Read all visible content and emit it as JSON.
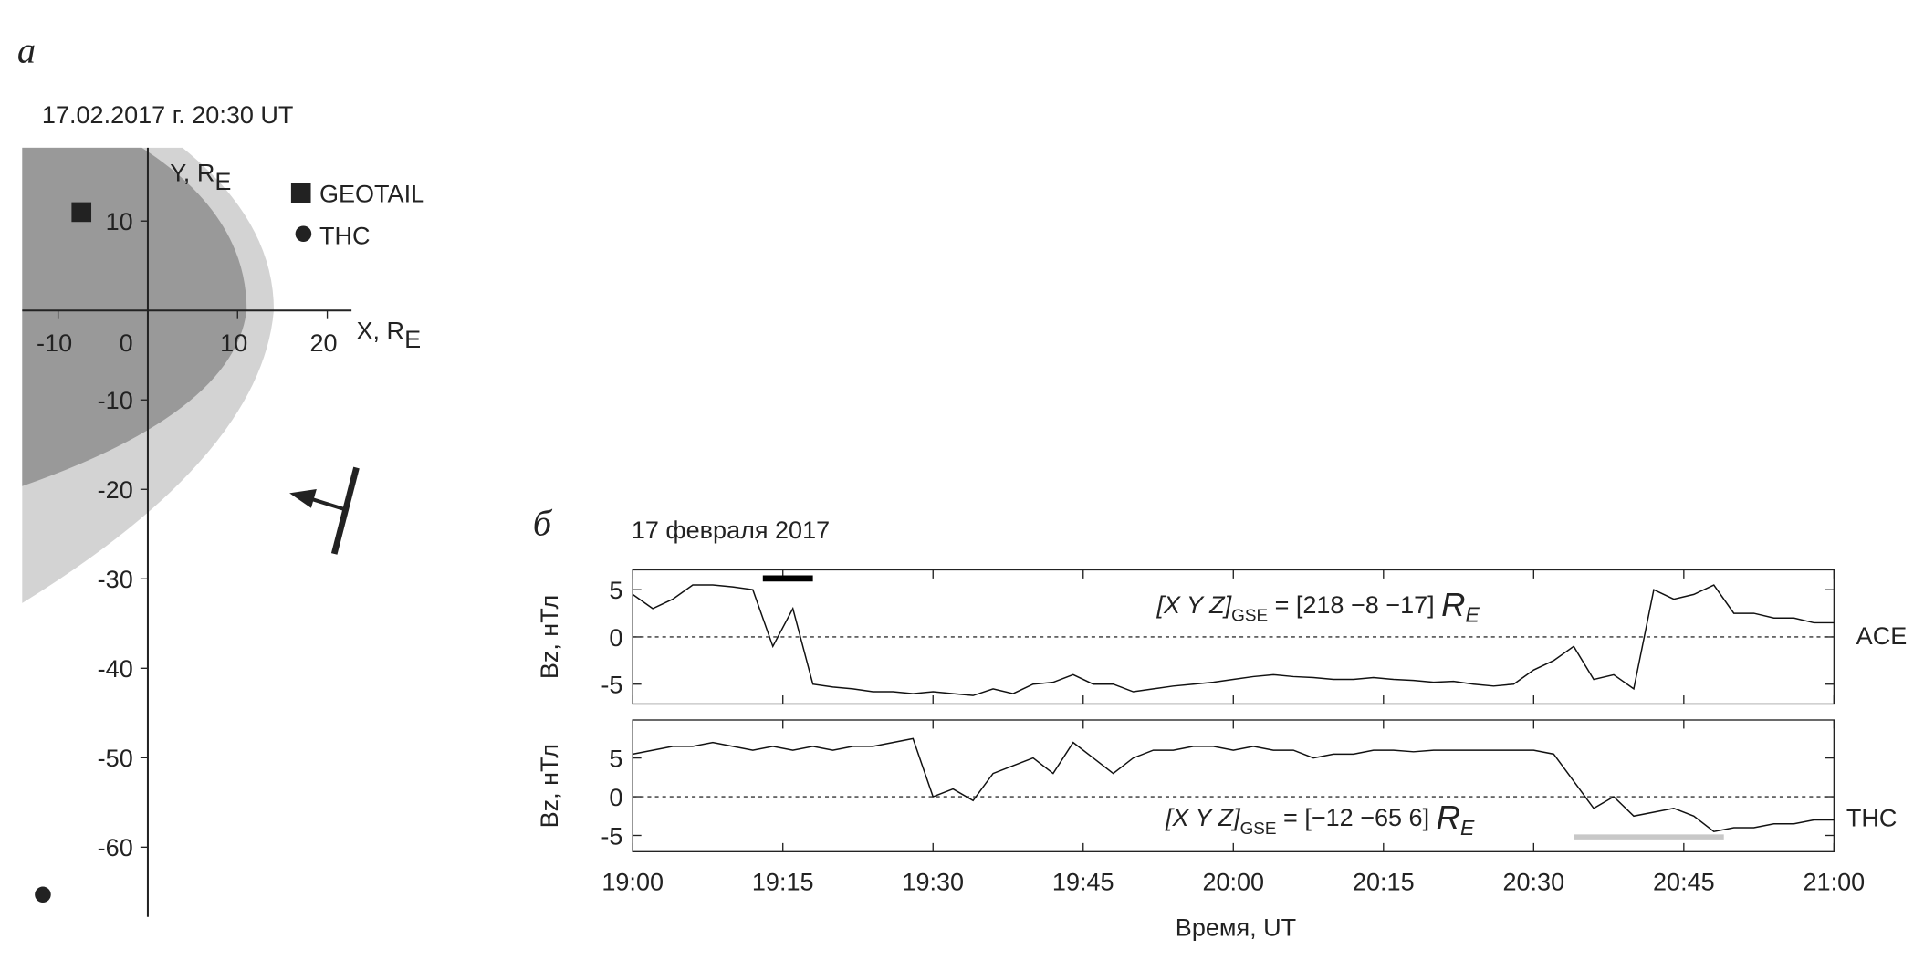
{
  "panel_labels": [
    "а",
    "б"
  ],
  "chart_data": [
    {
      "type": "scatter",
      "title": "17.02.2017 г.  20:30 UT",
      "xlabel": "X, R",
      "xlabel_sub": "E",
      "ylabel": "Y, R",
      "ylabel_sub": "E",
      "xlim": [
        -14,
        22.7
      ],
      "ylim": [
        -67.8,
        18.2
      ],
      "xticks": [
        -10,
        0,
        10,
        20
      ],
      "yticks": [
        10,
        -10,
        -20,
        -30,
        -40,
        -50,
        -60
      ],
      "series": [
        {
          "name": "GEOTAIL",
          "marker": "square",
          "color": "#222222",
          "x": [
            -7.4
          ],
          "values": [
            11
          ]
        },
        {
          "name": "THC",
          "marker": "circle",
          "color": "#222222",
          "x": [
            -11.7
          ],
          "values": [
            -65.3
          ]
        }
      ]
    },
    {
      "type": "line",
      "title": "17 февраля 2017",
      "ylabel": "Bz, нТл",
      "ylim": [
        -7.1,
        7.1
      ],
      "yticks": [
        -5,
        0,
        5
      ],
      "hline": 0,
      "annotation": [
        "[X Y Z]",
        "GSE",
        " = [218 −8 −17] ",
        "R",
        "E"
      ],
      "intervals": [
        {
          "start": "19:13",
          "end": "19:18",
          "color": "#000000"
        }
      ],
      "x": [
        "19:00",
        "19:02",
        "19:04",
        "19:06",
        "19:08",
        "19:10",
        "19:12",
        "19:14",
        "19:16",
        "19:18",
        "19:20",
        "19:22",
        "19:24",
        "19:26",
        "19:28",
        "19:30",
        "19:32",
        "19:34",
        "19:36",
        "19:38",
        "19:40",
        "19:42",
        "19:44",
        "19:46",
        "19:48",
        "19:50",
        "19:52",
        "19:54",
        "19:56",
        "19:58",
        "20:00",
        "20:02",
        "20:04",
        "20:06",
        "20:08",
        "20:10",
        "20:12",
        "20:14",
        "20:16",
        "20:18",
        "20:20",
        "20:22",
        "20:24",
        "20:26",
        "20:28",
        "20:30",
        "20:32",
        "20:34",
        "20:36",
        "20:38",
        "20:40",
        "20:42",
        "20:44",
        "20:46",
        "20:48",
        "20:50",
        "20:52",
        "20:54",
        "20:56",
        "20:58",
        "21:00"
      ],
      "series": [
        {
          "name": "ACE",
          "color": "#111111",
          "values": [
            4.5,
            3,
            4,
            5.5,
            5.5,
            5.3,
            5,
            -1,
            3,
            -5,
            -5.3,
            -5.5,
            -5.8,
            -5.8,
            -6,
            -5.8,
            -6,
            -6.2,
            -5.5,
            -6,
            -5,
            -4.8,
            -4,
            -5,
            -5,
            -5.8,
            -5.5,
            -5.2,
            -5,
            -4.8,
            -4.5,
            -4.2,
            -4,
            -4.2,
            -4.3,
            -4.5,
            -4.5,
            -4.3,
            -4.5,
            -4.6,
            -4.8,
            -4.7,
            -5,
            -5.2,
            -5,
            -3.5,
            -2.5,
            -1,
            -4.5,
            -4,
            -5.5,
            5,
            4,
            4.5,
            5.5,
            2.5,
            2.5,
            2,
            2,
            1.5,
            1.5
          ]
        }
      ]
    },
    {
      "type": "line",
      "ylabel": "Bz, нТл",
      "xlabel": "Время, UT",
      "xlim": [
        "19:00",
        "21:00"
      ],
      "xticks": [
        "19:00",
        "19:15",
        "19:30",
        "19:45",
        "20:00",
        "20:15",
        "20:30",
        "20:45",
        "21:00"
      ],
      "ylim": [
        -7.1,
        9.9
      ],
      "yticks": [
        -5,
        0,
        5
      ],
      "hline": 0,
      "annotation": [
        "[X Y Z]",
        "GSE",
        " = [−12 −65 6] ",
        "R",
        "E"
      ],
      "intervals": [
        {
          "start": "20:34",
          "end": "20:49",
          "color": "#c8c8c8"
        }
      ],
      "x": [
        "19:00",
        "19:02",
        "19:04",
        "19:06",
        "19:08",
        "19:10",
        "19:12",
        "19:14",
        "19:16",
        "19:18",
        "19:20",
        "19:22",
        "19:24",
        "19:26",
        "19:28",
        "19:30",
        "19:32",
        "19:34",
        "19:36",
        "19:38",
        "19:40",
        "19:42",
        "19:44",
        "19:46",
        "19:48",
        "19:50",
        "19:52",
        "19:54",
        "19:56",
        "19:58",
        "20:00",
        "20:02",
        "20:04",
        "20:06",
        "20:08",
        "20:10",
        "20:12",
        "20:14",
        "20:16",
        "20:18",
        "20:20",
        "20:22",
        "20:24",
        "20:26",
        "20:28",
        "20:30",
        "20:32",
        "20:34",
        "20:36",
        "20:38",
        "20:40",
        "20:42",
        "20:44",
        "20:46",
        "20:48",
        "20:50",
        "20:52",
        "20:54",
        "20:56",
        "20:58",
        "21:00"
      ],
      "series": [
        {
          "name": "THC",
          "color": "#111111",
          "values": [
            5.5,
            6,
            6.5,
            6.5,
            7,
            6.5,
            6,
            6.5,
            6,
            6.5,
            6,
            6.5,
            6.5,
            7,
            7.5,
            0,
            1,
            -0.5,
            3,
            4,
            5,
            3,
            7,
            5,
            3,
            5,
            6,
            6,
            6.5,
            6.5,
            6,
            6.5,
            6,
            6,
            5,
            5.5,
            5.5,
            6,
            6,
            5.8,
            6,
            6,
            6,
            6,
            6,
            6,
            5.5,
            2,
            -1.5,
            0,
            -2.5,
            -2,
            -1.5,
            -2.5,
            -4.5,
            -4,
            -4,
            -3.5,
            -3.5,
            -3,
            -3
          ]
        }
      ]
    }
  ]
}
